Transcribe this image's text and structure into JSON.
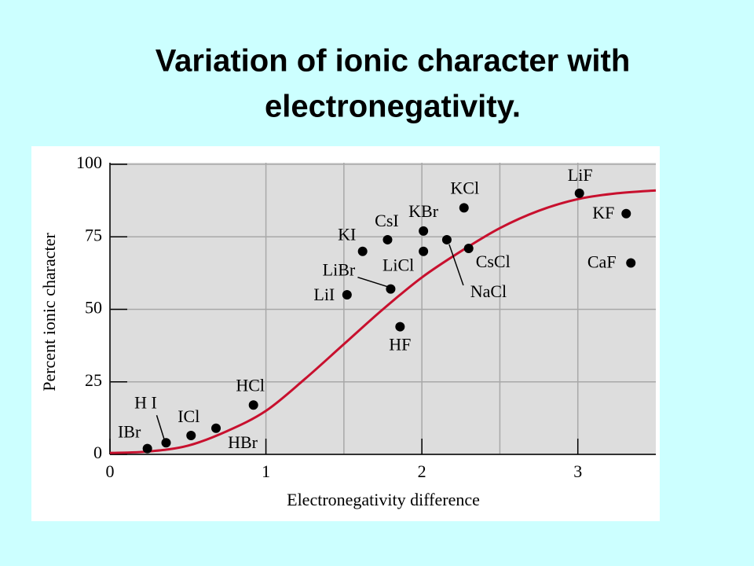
{
  "chart_data": {
    "type": "scatter",
    "title": [
      "Variation of ionic character with",
      "electronegativity."
    ],
    "x_label": "Electronegativity difference",
    "y_label": "Percent ionic character",
    "xlim": [
      0,
      3.5
    ],
    "ylim": [
      0,
      100
    ],
    "xticks": [
      0,
      1,
      2,
      3
    ],
    "yticks": [
      0,
      25,
      50,
      75,
      100
    ],
    "grid": true,
    "points": {
      "color": "#000000",
      "labels": [
        "IBr",
        "H I",
        "ICl",
        "HBr",
        "HCl",
        "LiI",
        "KI",
        "CsI",
        "LiBr",
        "HF",
        "KBr",
        "LiCl",
        "NaCl",
        "KCl",
        "CsCl",
        "LiF",
        "KF",
        "CaF"
      ],
      "x": [
        0.24,
        0.36,
        0.52,
        0.68,
        0.92,
        1.52,
        1.62,
        1.78,
        1.8,
        1.86,
        2.01,
        2.01,
        2.16,
        2.27,
        2.3,
        3.01,
        3.31,
        3.34
      ],
      "y": [
        2,
        4,
        6.5,
        9,
        17,
        55,
        70,
        74,
        57,
        44,
        77,
        70,
        74,
        85,
        71,
        90,
        83,
        66
      ]
    },
    "curve": {
      "color": "#c8102e",
      "x": [
        0,
        0.25,
        0.5,
        0.75,
        1,
        1.25,
        1.5,
        1.75,
        2,
        2.25,
        2.5,
        2.75,
        3,
        3.25,
        3.5
      ],
      "y": [
        0.5,
        1,
        3,
        8,
        15,
        26,
        38,
        50,
        61,
        70,
        78,
        84,
        88,
        90,
        91
      ]
    }
  }
}
